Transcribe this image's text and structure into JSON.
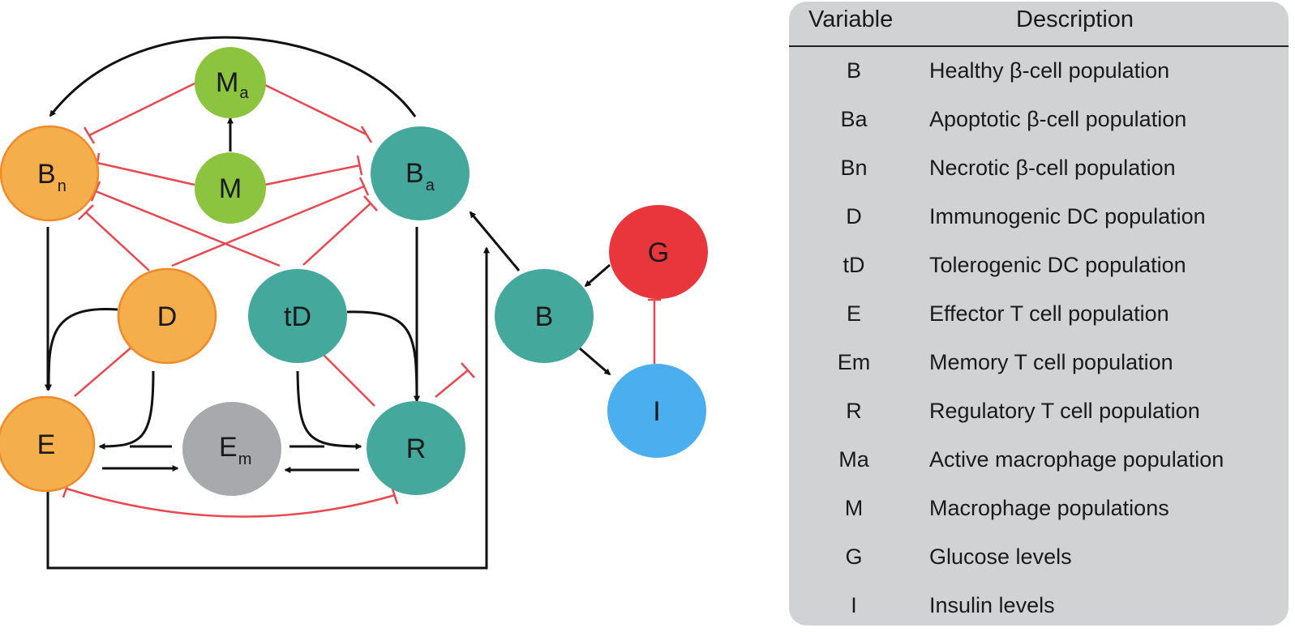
{
  "colors": {
    "orange": "#f5ae4c",
    "orange_stroke": "#f08a2c",
    "teal": "#45a89c",
    "green": "#8cc43f",
    "gray": "#a7a9ac",
    "red": "#e8363c",
    "blue": "#4aaeef",
    "inhibition": "#e8484f",
    "activation": "#111111",
    "panel": "#d1d2d4"
  },
  "nodes": {
    "Bn": {
      "main": "B",
      "sub": "n"
    },
    "Ma": {
      "main": "M",
      "sub": "a"
    },
    "M": {
      "main": "M",
      "sub": ""
    },
    "Ba": {
      "main": "B",
      "sub": "a"
    },
    "D": {
      "main": "D",
      "sub": ""
    },
    "tD": {
      "main": "tD",
      "sub": ""
    },
    "E": {
      "main": "E",
      "sub": ""
    },
    "Em": {
      "main": "E",
      "sub": "m"
    },
    "R": {
      "main": "R",
      "sub": ""
    },
    "B": {
      "main": "B",
      "sub": ""
    },
    "G": {
      "main": "G",
      "sub": ""
    },
    "I": {
      "main": "I",
      "sub": ""
    }
  },
  "legend": {
    "header_variable": "Variable",
    "header_description": "Description",
    "rows": [
      {
        "variable": "B",
        "description": "Healthy β-cell population"
      },
      {
        "variable": "Ba",
        "description": "Apoptotic β-cell population"
      },
      {
        "variable": "Bn",
        "description": "Necrotic β-cell population"
      },
      {
        "variable": "D",
        "description": "Immunogenic DC population"
      },
      {
        "variable": "tD",
        "description": "Tolerogenic DC population"
      },
      {
        "variable": "E",
        "description": "Effector T cell population"
      },
      {
        "variable": "Em",
        "description": "Memory T cell population"
      },
      {
        "variable": "R",
        "description": "Regulatory T cell population"
      },
      {
        "variable": "Ma",
        "description": "Active macrophage population"
      },
      {
        "variable": "M",
        "description": "Macrophage populations"
      },
      {
        "variable": "G",
        "description": "Glucose levels"
      },
      {
        "variable": "I",
        "description": "Insulin levels"
      }
    ]
  }
}
